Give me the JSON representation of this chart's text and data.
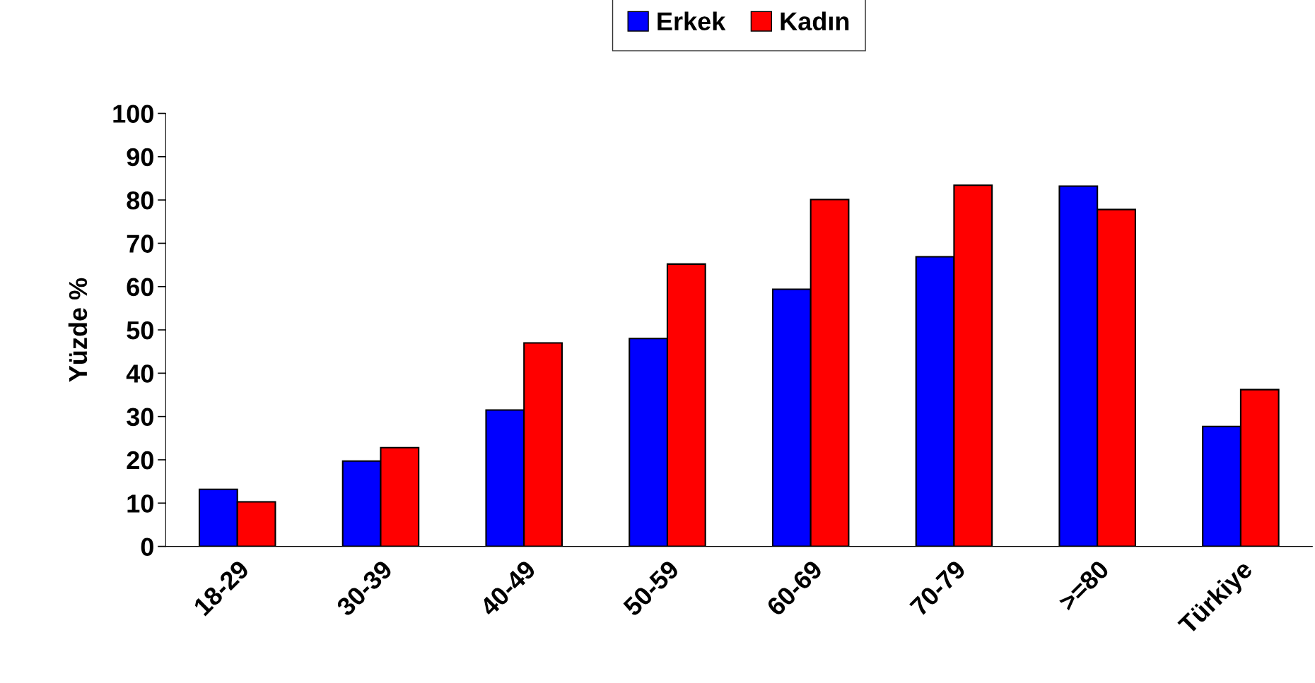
{
  "chart_data": {
    "type": "bar",
    "ylabel": "Yüzde %",
    "categories": [
      "18-29",
      "30-39",
      "40-49",
      "50-59",
      "60-69",
      "70-79",
      ">=80",
      "Türkiye"
    ],
    "series": [
      {
        "name": "Erkek",
        "color": "#0000ff",
        "values": [
          13.2,
          19.7,
          31.5,
          48,
          59.4,
          66.9,
          83.2,
          27.7
        ]
      },
      {
        "name": "Kadın",
        "color": "#ff0000",
        "values": [
          10.3,
          22.8,
          47,
          65.2,
          80.1,
          83.4,
          77.8,
          36.2
        ]
      }
    ],
    "ylim": [
      0,
      100
    ],
    "yticks": [
      0,
      10,
      20,
      30,
      40,
      50,
      60,
      70,
      80,
      90,
      100
    ],
    "grid": false,
    "legend": "top"
  }
}
